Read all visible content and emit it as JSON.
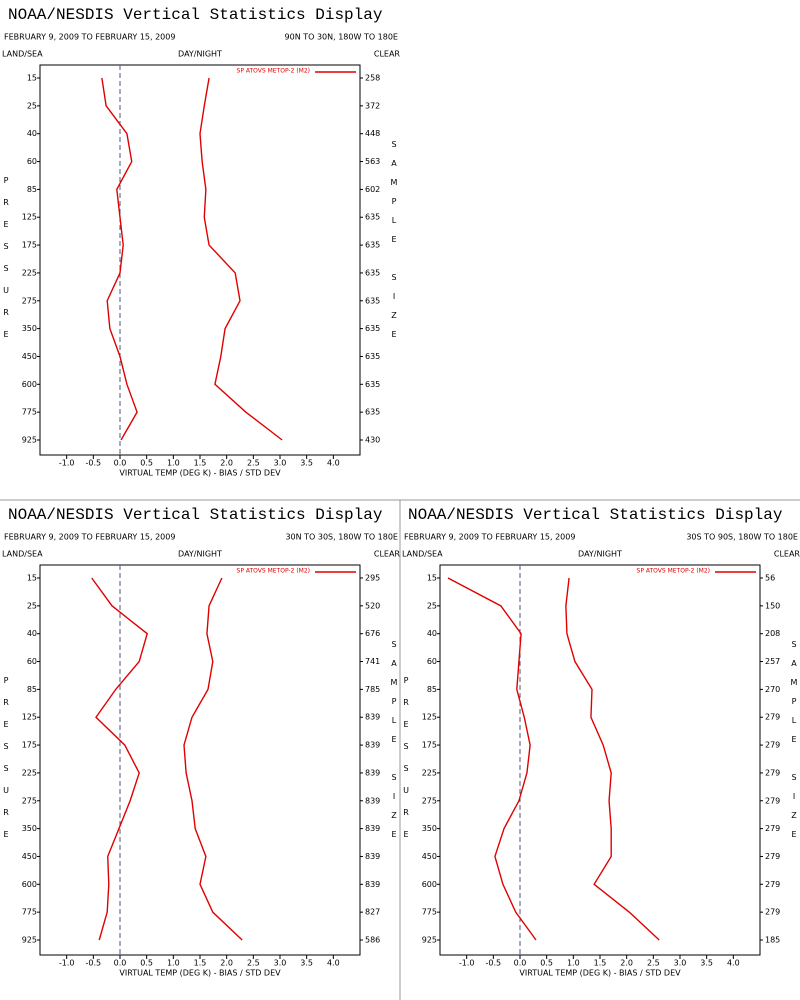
{
  "chart_data": [
    {
      "type": "line",
      "title": "NOAA/NESDIS Vertical Statistics Display",
      "date_range": "FEBRUARY 9, 2009 TO FEBRUARY 15, 2009",
      "region": "90N TO 30N, 180W TO 180E",
      "left_header": "LAND/SEA",
      "center_header": "DAY/NIGHT",
      "right_header": "CLEAR",
      "y_label": "PRESSURE",
      "y2_label": "SAMPLE SIZE",
      "x_label": "VIRTUAL TEMP (DEG K) - BIAS / STD DEV",
      "categories": [
        15,
        25,
        40,
        60,
        85,
        125,
        175,
        225,
        275,
        350,
        450,
        600,
        775,
        925
      ],
      "sample_size": [
        258,
        372,
        448,
        563,
        602,
        635,
        635,
        635,
        635,
        635,
        635,
        635,
        635,
        430
      ],
      "series": [
        {
          "name": "SP ATOVS METOP-2 (M2)",
          "color": "#e00000",
          "values": [
            -0.34,
            -0.26,
            0.13,
            0.22,
            -0.06,
            0.0,
            0.06,
            0.0,
            -0.24,
            -0.19,
            0.0,
            0.13,
            0.32,
            0.02
          ]
        },
        {
          "color": "#e00000",
          "values": [
            1.67,
            1.58,
            1.5,
            1.54,
            1.61,
            1.58,
            1.67,
            2.16,
            2.25,
            1.97,
            1.89,
            1.78,
            2.36,
            3.04
          ]
        }
      ],
      "xlim": [
        -1.5,
        4.5
      ],
      "xticks": [
        {
          "value": -1,
          "label": "-1.0"
        },
        {
          "value": -0.5,
          "label": "-0.5"
        },
        {
          "value": 0,
          "label": "0.0"
        },
        {
          "value": 0.5,
          "label": "0.5"
        },
        {
          "value": 1,
          "label": "1.0"
        },
        {
          "value": 1.5,
          "label": "1.5"
        },
        {
          "value": 2,
          "label": "2.0"
        },
        {
          "value": 2.5,
          "label": "2.5"
        },
        {
          "value": 3,
          "label": "3.0"
        },
        {
          "value": 3.5,
          "label": "3.5"
        },
        {
          "value": 4,
          "label": "4.0"
        }
      ],
      "zero_line": true
    },
    {
      "type": "line",
      "title": "NOAA/NESDIS Vertical Statistics Display",
      "date_range": "FEBRUARY 9, 2009 TO FEBRUARY 15, 2009",
      "region": "30N TO 30S, 180W TO 180E",
      "left_header": "LAND/SEA",
      "center_header": "DAY/NIGHT",
      "right_header": "CLEAR",
      "y_label": "PRESSURE",
      "y2_label": "SAMPLE SIZE",
      "x_label": "VIRTUAL TEMP (DEG K) - BIAS / STD DEV",
      "categories": [
        15,
        25,
        40,
        60,
        85,
        125,
        175,
        225,
        275,
        350,
        450,
        600,
        775,
        925
      ],
      "sample_size": [
        295,
        520,
        676,
        741,
        785,
        839,
        839,
        839,
        839,
        839,
        839,
        839,
        827,
        586
      ],
      "series": [
        {
          "name": "SP ATOVS METOP-2 (M2)",
          "color": "#e00000",
          "values": [
            -0.53,
            -0.15,
            0.51,
            0.36,
            -0.08,
            -0.45,
            0.09,
            0.36,
            0.19,
            -0.02,
            -0.23,
            -0.21,
            -0.24,
            -0.39
          ]
        },
        {
          "color": "#e00000",
          "values": [
            1.91,
            1.67,
            1.63,
            1.74,
            1.65,
            1.35,
            1.2,
            1.24,
            1.35,
            1.41,
            1.61,
            1.5,
            1.74,
            2.29
          ]
        }
      ],
      "xlim": [
        -1.5,
        4.5
      ],
      "xticks": [
        {
          "value": -1,
          "label": "-1.0"
        },
        {
          "value": -0.5,
          "label": "-0.5"
        },
        {
          "value": 0,
          "label": "0.0"
        },
        {
          "value": 0.5,
          "label": "0.5"
        },
        {
          "value": 1,
          "label": "1.0"
        },
        {
          "value": 1.5,
          "label": "1.5"
        },
        {
          "value": 2,
          "label": "2.0"
        },
        {
          "value": 2.5,
          "label": "2.5"
        },
        {
          "value": 3,
          "label": "3.0"
        },
        {
          "value": 3.5,
          "label": "3.5"
        },
        {
          "value": 4,
          "label": "4.0"
        }
      ],
      "zero_line": true
    },
    {
      "type": "line",
      "title": "NOAA/NESDIS Vertical Statistics Display",
      "date_range": "FEBRUARY 9, 2009 TO FEBRUARY 15, 2009",
      "region": "30S TO 90S, 180W TO 180E",
      "left_header": "LAND/SEA",
      "center_header": "DAY/NIGHT",
      "right_header": "CLEAR",
      "y_label": "PRESSURE",
      "y2_label": "SAMPLE SIZE",
      "x_label": "VIRTUAL TEMP (DEG K) - BIAS / STD DEV",
      "categories": [
        15,
        25,
        40,
        60,
        85,
        125,
        175,
        225,
        275,
        350,
        450,
        600,
        775,
        925
      ],
      "sample_size": [
        56,
        150,
        208,
        257,
        270,
        279,
        279,
        279,
        279,
        279,
        279,
        279,
        279,
        185
      ],
      "series": [
        {
          "name": "SP ATOVS METOP-2 (M2)",
          "color": "#e00000",
          "values": [
            -1.35,
            -0.36,
            0.02,
            -0.02,
            -0.06,
            0.08,
            0.19,
            0.13,
            -0.02,
            -0.3,
            -0.47,
            -0.32,
            -0.08,
            0.3
          ]
        },
        {
          "color": "#e00000",
          "values": [
            0.92,
            0.86,
            0.88,
            1.03,
            1.35,
            1.33,
            1.56,
            1.71,
            1.67,
            1.71,
            1.71,
            1.39,
            2.05,
            2.61
          ]
        }
      ],
      "xlim": [
        -1.5,
        4.5
      ],
      "xticks": [
        {
          "value": -1,
          "label": "-1.0"
        },
        {
          "value": -0.5,
          "label": "-0.5"
        },
        {
          "value": 0,
          "label": "0.0"
        },
        {
          "value": 0.5,
          "label": "0.5"
        },
        {
          "value": 1,
          "label": "1.0"
        },
        {
          "value": 1.5,
          "label": "1.5"
        },
        {
          "value": 2,
          "label": "2.0"
        },
        {
          "value": 2.5,
          "label": "2.5"
        },
        {
          "value": 3,
          "label": "3.0"
        },
        {
          "value": 3.5,
          "label": "3.5"
        },
        {
          "value": 4,
          "label": "4.0"
        }
      ],
      "zero_line": true
    }
  ]
}
